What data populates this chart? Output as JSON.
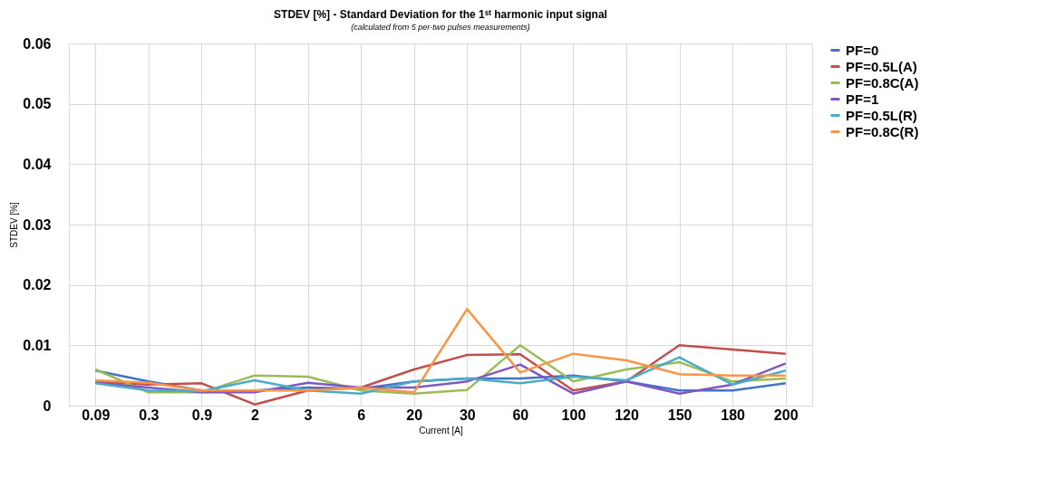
{
  "chart_data": {
    "type": "line",
    "title": "STDEV [%] - Standard Deviation for the 1ˢᵗ harmonic input signal",
    "subtitle": "(calculated from 5 per-two pulses measurements)",
    "xlabel": "Current [A]",
    "ylabel": "STDEV [%]",
    "categories": [
      "0.09",
      "0.3",
      "0.9",
      "2",
      "3",
      "6",
      "20",
      "30",
      "60",
      "100",
      "120",
      "150",
      "180",
      "200"
    ],
    "series": [
      {
        "name": "PF=0",
        "color": "#4472c4",
        "values": [
          0.0058,
          0.004,
          0.0025,
          0.0025,
          0.003,
          0.0028,
          0.004,
          0.0045,
          0.0045,
          0.005,
          0.004,
          0.0025,
          0.0025,
          0.0037
        ]
      },
      {
        "name": "PF=0.5L(A)",
        "color": "#c0504d",
        "values": [
          0.004,
          0.0035,
          0.0037,
          0.0002,
          0.0025,
          0.003,
          0.006,
          0.0084,
          0.0085,
          0.0025,
          0.004,
          0.01,
          0.0093,
          0.0086
        ]
      },
      {
        "name": "PF=0.8C(A)",
        "color": "#9bbb59",
        "values": [
          0.006,
          0.0022,
          0.0022,
          0.005,
          0.0048,
          0.0025,
          0.002,
          0.0026,
          0.01,
          0.004,
          0.006,
          0.0072,
          0.004,
          0.0045
        ]
      },
      {
        "name": "PF=1",
        "color": "#7e57c2",
        "values": [
          0.0038,
          0.003,
          0.0022,
          0.0022,
          0.0038,
          0.003,
          0.003,
          0.004,
          0.0068,
          0.002,
          0.004,
          0.002,
          0.0035,
          0.007
        ]
      },
      {
        "name": "PF=0.5L(R)",
        "color": "#4bacc6",
        "values": [
          0.0037,
          0.0025,
          0.0024,
          0.0042,
          0.0025,
          0.002,
          0.004,
          0.0045,
          0.0037,
          0.0048,
          0.0042,
          0.008,
          0.0035,
          0.0058
        ]
      },
      {
        "name": "PF=0.8C(R)",
        "color": "#f79646",
        "values": [
          0.0042,
          0.0038,
          0.0025,
          0.0025,
          0.0025,
          0.003,
          0.0022,
          0.016,
          0.0055,
          0.0086,
          0.0075,
          0.0052,
          0.005,
          0.005
        ]
      }
    ],
    "ylim": [
      0,
      0.06
    ],
    "yticks": [
      {
        "value": 0,
        "label": "0"
      },
      0.01,
      0.02,
      0.03,
      0.04,
      0.05,
      0.06
    ],
    "grid": true,
    "legend": "right",
    "marker": "none",
    "line_style": "solid"
  }
}
